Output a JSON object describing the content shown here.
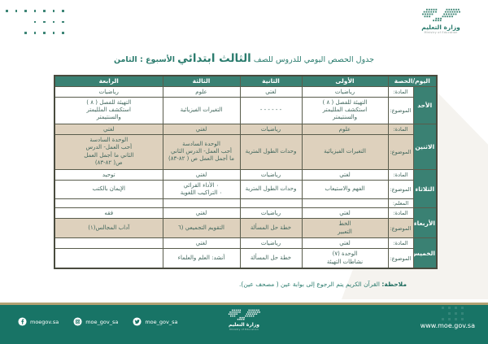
{
  "brand": {
    "ar": "وزارة التعليم",
    "en": "Ministry of Education"
  },
  "title": {
    "prefix": "جدول الحصص اليومي للدروس للصف",
    "grade": "الثالث ابتدائي",
    "suffix": "الأسبوع : الثامن"
  },
  "table": {
    "header": {
      "day_period": "اليوم/الحصة",
      "periods": [
        "الأولى",
        "الثانية",
        "الثالثة",
        "الرابعة"
      ]
    },
    "row_labels": {
      "subject": "المادة:",
      "topic": "الموضوع:",
      "teacher": "المعلم:"
    },
    "days": [
      {
        "key": "sunday",
        "name": "الأحد",
        "subjects": [
          "رياضيات",
          "لغتي",
          "علوم",
          "رياضيات"
        ],
        "topics": [
          "التهيئة للفصل ( ٨ )\nاستكشف الملليمتر\nوالسنتيمتر",
          "- - - - - -",
          "التغيرات الفيزيائية",
          "التهيئة للفصل ( ٨ )\nاستكشف الملليمتر\nوالسنتيمتر"
        ],
        "shade_subject": false,
        "shade_topic": false,
        "teacher_row": false
      },
      {
        "key": "monday",
        "name": "الاثنين",
        "subjects": [
          "علوم",
          "رياضيات",
          "لغتي",
          "لغتي"
        ],
        "topics": [
          "التغيرات الفيزيائية",
          "وحدات الطول المترية",
          "الوحدة السادسة\nأحب العمل- الدرس الثاني\nما أجمل العمل ص ( ٨٢-٨٣)",
          "الوحدة السادسة\nأحب العمل- الدرس\nالثاني ما أجمل العمل\nص( ٨٢-٨٣)"
        ],
        "shade_subject": true,
        "shade_topic": true,
        "teacher_row": false
      },
      {
        "key": "tuesday",
        "name": "الثلاثاء",
        "subjects": [
          "لغتي",
          "رياضيات",
          "لغتي",
          "توحيد"
        ],
        "topics": [
          "الفهم والاستيعاب",
          "وحدات الطول المترية",
          "۰ الأداء القرائي\n۰ التراكيب اللغوية",
          "الإيمان بالكتب"
        ],
        "shade_subject": false,
        "shade_topic": false,
        "teacher_row": true
      },
      {
        "key": "wednesday",
        "name": "الأربعاء",
        "subjects": [
          "لغتي",
          "رياضيات",
          "لغتي",
          "فقه"
        ],
        "topics": [
          "الخط\nالتعبير",
          "خطة حل المسألة",
          "التقويم التجميعي (٦",
          "آداب المجالس(١)"
        ],
        "shade_subject": false,
        "shade_topic": true,
        "teacher_row": false
      },
      {
        "key": "thursday",
        "name": "الخميس",
        "subjects": [
          "لغتي",
          "رياضيات",
          "لغتي",
          ""
        ],
        "topics": [
          "الوحدة (٧)\nنشاطات التهيئة",
          "خطة حل المسألة",
          "أنشد: العلم والعلماء",
          ""
        ],
        "shade_subject": false,
        "shade_topic": false,
        "teacher_row": false
      }
    ]
  },
  "note": {
    "label": "ملاحظة:",
    "text": "القرآن الكريم يتم الرجوع إلى بوابة عين ( مصحف عين)."
  },
  "footer": {
    "social": [
      {
        "icon": "facebook-icon",
        "handle": "moegov.sa"
      },
      {
        "icon": "instagram-icon",
        "handle": "moe_gov_sa"
      },
      {
        "icon": "twitter-icon",
        "handle": "moe_gov_sa"
      }
    ],
    "website": "www.moe.gov.sa"
  },
  "colors": {
    "teal": "#187466",
    "table_teal": "#3a8173",
    "beige": "#ded1bd",
    "gold": "#b2a173"
  }
}
